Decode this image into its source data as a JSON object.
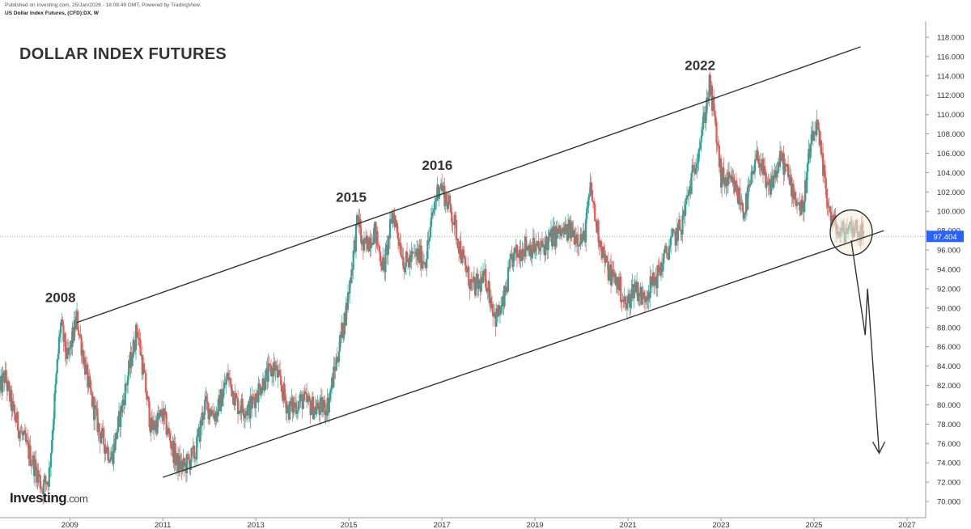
{
  "header": {
    "published": "Published on Investing.com, 25/Jan/2026 - 18:08:49 GMT, Powered by TradingView.",
    "symbol": "US Dollar Index Futures, (CFD):DX, W"
  },
  "logo": {
    "name": "Investing",
    "suffix": ".com"
  },
  "colors": {
    "up": "#26a69a",
    "down": "#ef5350",
    "trendline": "#333333",
    "current_price_line": "#6c9ad8",
    "current_price_label_bg": "#2962ff",
    "highlight_circle_fill": "#f2efd9"
  },
  "chart_data": {
    "type": "candlestick",
    "title": "DOLLAR INDEX FUTURES",
    "interval": "W",
    "x_axis": {
      "ticks": [
        "2009",
        "2011",
        "2013",
        "2015",
        "2017",
        "2019",
        "2021",
        "2023",
        "2025",
        "2027"
      ],
      "range": [
        2007.5,
        2027.4
      ]
    },
    "y_axis": {
      "ticks": [
        "70.000",
        "72.000",
        "74.000",
        "76.000",
        "78.000",
        "80.000",
        "82.000",
        "84.000",
        "86.000",
        "88.000",
        "90.000",
        "92.000",
        "94.000",
        "96.000",
        "98.000",
        "100.000",
        "102.000",
        "104.000",
        "106.000",
        "108.000",
        "110.000",
        "112.000",
        "114.000",
        "116.000",
        "118.000"
      ],
      "range": [
        69.0,
        119.5
      ],
      "position": "right"
    },
    "current_price": {
      "value": 97.404,
      "label": "97.404"
    },
    "price_path": [
      [
        2007.5,
        81.5
      ],
      [
        2007.6,
        83.0
      ],
      [
        2007.8,
        79.0
      ],
      [
        2008.0,
        76.5
      ],
      [
        2008.3,
        73.0
      ],
      [
        2008.4,
        71.5
      ],
      [
        2008.55,
        72.5
      ],
      [
        2008.8,
        88.5
      ],
      [
        2008.95,
        84.5
      ],
      [
        2009.15,
        89.0
      ],
      [
        2009.4,
        82.0
      ],
      [
        2009.65,
        77.0
      ],
      [
        2009.9,
        74.5
      ],
      [
        2010.15,
        80.5
      ],
      [
        2010.45,
        88.0
      ],
      [
        2010.75,
        77.5
      ],
      [
        2011.0,
        79.0
      ],
      [
        2011.3,
        74.0
      ],
      [
        2011.45,
        73.5
      ],
      [
        2011.7,
        75.0
      ],
      [
        2011.9,
        80.0
      ],
      [
        2012.15,
        79.0
      ],
      [
        2012.4,
        83.0
      ],
      [
        2012.6,
        80.0
      ],
      [
        2012.85,
        79.5
      ],
      [
        2013.1,
        82.0
      ],
      [
        2013.4,
        84.0
      ],
      [
        2013.7,
        79.5
      ],
      [
        2014.0,
        80.5
      ],
      [
        2014.3,
        79.5
      ],
      [
        2014.55,
        80.0
      ],
      [
        2014.75,
        85.0
      ],
      [
        2014.95,
        90.0
      ],
      [
        2015.2,
        99.5
      ],
      [
        2015.3,
        96.0
      ],
      [
        2015.55,
        98.0
      ],
      [
        2015.75,
        94.0
      ],
      [
        2015.95,
        100.0
      ],
      [
        2016.2,
        94.5
      ],
      [
        2016.45,
        95.5
      ],
      [
        2016.65,
        95.0
      ],
      [
        2016.85,
        101.0
      ],
      [
        2016.95,
        103.0
      ],
      [
        2017.2,
        100.0
      ],
      [
        2017.45,
        95.0
      ],
      [
        2017.65,
        92.0
      ],
      [
        2017.95,
        93.0
      ],
      [
        2018.15,
        89.0
      ],
      [
        2018.3,
        90.0
      ],
      [
        2018.5,
        95.0
      ],
      [
        2018.8,
        96.5
      ],
      [
        2019.1,
        96.0
      ],
      [
        2019.4,
        97.5
      ],
      [
        2019.75,
        98.0
      ],
      [
        2020.05,
        97.0
      ],
      [
        2020.2,
        102.5
      ],
      [
        2020.3,
        99.0
      ],
      [
        2020.55,
        94.0
      ],
      [
        2020.8,
        92.5
      ],
      [
        2020.95,
        90.0
      ],
      [
        2021.15,
        92.5
      ],
      [
        2021.3,
        91.0
      ],
      [
        2021.6,
        93.0
      ],
      [
        2021.9,
        96.5
      ],
      [
        2022.15,
        98.5
      ],
      [
        2022.4,
        104.0
      ],
      [
        2022.6,
        108.5
      ],
      [
        2022.75,
        113.0
      ],
      [
        2022.85,
        110.0
      ],
      [
        2023.0,
        103.5
      ],
      [
        2023.3,
        102.5
      ],
      [
        2023.5,
        100.0
      ],
      [
        2023.8,
        106.0
      ],
      [
        2024.0,
        102.0
      ],
      [
        2024.3,
        105.5
      ],
      [
        2024.6,
        101.5
      ],
      [
        2024.75,
        100.0
      ],
      [
        2024.9,
        106.0
      ],
      [
        2025.05,
        109.0
      ],
      [
        2025.2,
        104.0
      ],
      [
        2025.35,
        99.5
      ],
      [
        2025.55,
        97.5
      ],
      [
        2025.8,
        98.5
      ],
      [
        2026.0,
        98.0
      ],
      [
        2026.07,
        97.4
      ]
    ],
    "trendlines": [
      {
        "name": "upper-channel",
        "from": [
          2009.15,
          88.5
        ],
        "to": [
          2026.0,
          117.0
        ]
      },
      {
        "name": "lower-channel",
        "from": [
          2011.0,
          72.5
        ],
        "to": [
          2026.5,
          98.0
        ]
      }
    ],
    "projection": {
      "points": [
        [
          2025.8,
          97.0
        ],
        [
          2026.1,
          87.2
        ],
        [
          2026.15,
          92.0
        ],
        [
          2026.4,
          75.0
        ]
      ],
      "arrow_end": [
        2026.4,
        75.0
      ]
    },
    "highlight": {
      "center": [
        2025.8,
        97.8
      ],
      "label": ""
    },
    "annotations": [
      {
        "text": "2008",
        "x": 2008.8,
        "y": 90.6
      },
      {
        "text": "2015",
        "x": 2015.05,
        "y": 101.0
      },
      {
        "text": "2016",
        "x": 2016.9,
        "y": 104.3
      },
      {
        "text": "2022",
        "x": 2022.55,
        "y": 114.6
      }
    ],
    "grid": false,
    "legend": "none"
  }
}
